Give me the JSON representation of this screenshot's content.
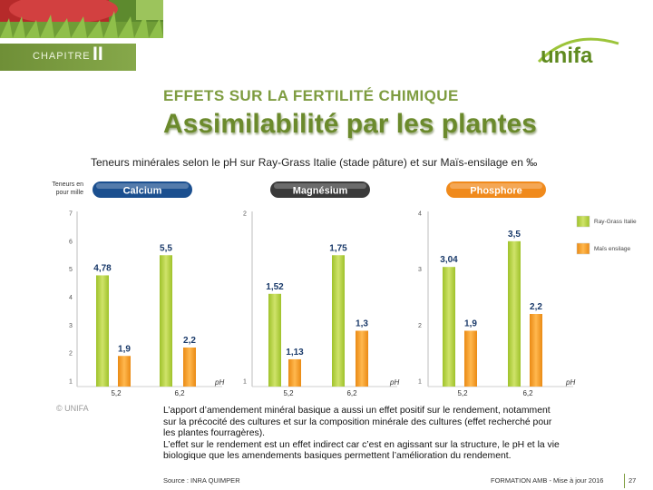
{
  "header": {
    "chapter_label": "CHAPITRE",
    "chapter_number": "II",
    "logo_text": "unifa",
    "eyebrow": "EFFETS SUR LA FERTILITÉ CHIMIQUE",
    "title": "Assimilabilité par les plantes"
  },
  "subtitle": "Teneurs minérales selon le pH sur Ray-Grass Italie (stade pâture) et sur Maïs-ensilage en ‰",
  "chart_data": {
    "type": "bar",
    "y_unit_label": "Teneurs en pour mille",
    "x_axis_label": "pH",
    "legend": {
      "position": "right",
      "entries": [
        {
          "name": "Ray-Grass Italie",
          "color": "#b6d23a"
        },
        {
          "name": "Maïs ensilage",
          "color": "#f39a22"
        }
      ]
    },
    "panels": [
      {
        "name": "Calcium",
        "button_color": "#1b4f8f",
        "y_ticks": [
          "7",
          "6",
          "5",
          "4",
          "3",
          "2",
          "1"
        ],
        "ylim": [
          1,
          7
        ],
        "categories": [
          "5,2",
          "6,2"
        ],
        "series": [
          {
            "name": "Ray-Grass Italie",
            "values": [
              4.78,
              5.5
            ],
            "labels": [
              "4,78",
              "5,5"
            ]
          },
          {
            "name": "Maïs ensilage",
            "values": [
              1.9,
              2.2
            ],
            "labels": [
              "1,9",
              "2,2"
            ]
          }
        ]
      },
      {
        "name": "Magnésium",
        "button_color": "#3a3a3a",
        "y_ticks": [
          "2",
          "1"
        ],
        "ylim": [
          1,
          2
        ],
        "categories": [
          "5,2",
          "6,2"
        ],
        "series": [
          {
            "name": "Ray-Grass Italie",
            "values": [
              1.52,
              1.75
            ],
            "labels": [
              "1,52",
              "1,75"
            ]
          },
          {
            "name": "Maïs ensilage",
            "values": [
              1.13,
              1.3
            ],
            "labels": [
              "1,13",
              "1,3"
            ]
          }
        ]
      },
      {
        "name": "Phosphore",
        "button_color": "#f08a1c",
        "y_ticks": [
          "4",
          "3",
          "2",
          "1"
        ],
        "ylim": [
          1,
          4
        ],
        "categories": [
          "5,2",
          "6,2"
        ],
        "series": [
          {
            "name": "Ray-Grass Italie",
            "values": [
              3.04,
              3.5
            ],
            "labels": [
              "3,04",
              "3,5"
            ]
          },
          {
            "name": "Maïs ensilage",
            "values": [
              1.9,
              2.2
            ],
            "labels": [
              "1,9",
              "2,2"
            ]
          }
        ]
      }
    ]
  },
  "copyright": "© UNIFA",
  "footnote": [
    "L’apport d’amendement minéral basique a aussi un effet positif sur le rendement, notamment",
    "sur la précocité des cultures et sur la composition minérale des cultures (effet recherché pour",
    "les plantes fourragères).",
    "L’effet sur le rendement est un effet indirect car c’est en agissant sur la structure, le pH et la vie",
    "biologique que les amendements basiques permettent l’amélioration du rendement."
  ],
  "footer": {
    "source": "Source : INRA QUIMPER",
    "formation": "FORMATION AMB - Mise à jour 2016",
    "page_number": "27"
  },
  "colors": {
    "brand_green": "#6b8a2c",
    "bar_green": "#b6d23a",
    "bar_orange": "#f39a22"
  }
}
